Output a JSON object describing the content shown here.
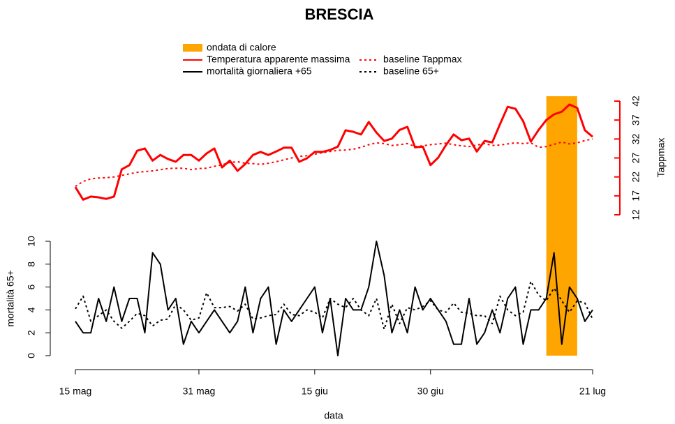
{
  "chart_data": {
    "type": "line",
    "title": "BRESCIA",
    "x_label": "data",
    "y_label": "mortalità 65+",
    "y2_label": "Tappmax",
    "x": [
      "15 mag",
      "16 mag",
      "17 mag",
      "18 mag",
      "19 mag",
      "20 mag",
      "21 mag",
      "22 mag",
      "23 mag",
      "24 mag",
      "25 mag",
      "26 mag",
      "27 mag",
      "28 mag",
      "29 mag",
      "30 mag",
      "31 mag",
      "1 giu",
      "2 giu",
      "3 giu",
      "4 giu",
      "5 giu",
      "6 giu",
      "7 giu",
      "8 giu",
      "9 giu",
      "10 giu",
      "11 giu",
      "12 giu",
      "13 giu",
      "14 giu",
      "15 giu",
      "16 giu",
      "17 giu",
      "18 giu",
      "19 giu",
      "20 giu",
      "21 giu",
      "22 giu",
      "23 giu",
      "24 giu",
      "25 giu",
      "26 giu",
      "27 giu",
      "28 giu",
      "29 giu",
      "30 giu",
      "1 lug",
      "2 lug",
      "3 lug",
      "4 lug",
      "5 lug",
      "6 lug",
      "7 lug",
      "8 lug",
      "9 lug",
      "10 lug",
      "11 lug",
      "12 lug",
      "13 lug",
      "14 lug",
      "15 lug",
      "16 lug",
      "17 lug",
      "18 lug",
      "19 lug",
      "20 lug",
      "21 lug"
    ],
    "xticks": [
      "15 mag",
      "31 mag",
      "15 giu",
      "30 giu",
      "21 lug"
    ],
    "ylim": [
      0,
      10
    ],
    "yticks": [
      0,
      2,
      4,
      6,
      8,
      10
    ],
    "y2lim": [
      12,
      42
    ],
    "y2ticks": [
      12,
      17,
      22,
      27,
      32,
      37,
      42
    ],
    "y2_color": "#ff0000",
    "highlight": {
      "name": "ondata di calore",
      "color": "#ffa500",
      "start": "15 lug",
      "end": "19 lug"
    },
    "series": [
      {
        "name": "Temperatura apparente massima",
        "color": "#ff0000",
        "dash": "solid",
        "axis": "y2",
        "values": [
          19.3,
          16.0,
          16.8,
          16.6,
          16.2,
          16.8,
          24.0,
          25.1,
          28.9,
          29.5,
          26.3,
          27.8,
          26.7,
          26.0,
          27.8,
          27.8,
          26.3,
          28.2,
          29.5,
          24.5,
          26.3,
          23.6,
          25.4,
          27.8,
          28.6,
          27.8,
          28.7,
          29.7,
          29.7,
          26.0,
          26.9,
          28.6,
          28.6,
          29.1,
          30.0,
          34.3,
          33.9,
          33.2,
          36.5,
          33.7,
          31.5,
          32.1,
          34.4,
          35.2,
          29.8,
          30.0,
          25.1,
          27.1,
          30.4,
          33.2,
          31.7,
          32.1,
          28.7,
          31.5,
          31.1,
          35.9,
          40.5,
          40.0,
          36.7,
          31.3,
          34.4,
          37.0,
          38.5,
          39.2,
          41.1,
          40.2,
          34.3,
          32.6
        ]
      },
      {
        "name": "baseline Tappmax",
        "color": "#ff0000",
        "dash": "dotted",
        "axis": "y2",
        "values": [
          19.5,
          20.8,
          21.5,
          21.7,
          21.8,
          22.0,
          22.4,
          22.8,
          23.2,
          23.4,
          23.6,
          23.9,
          24.2,
          24.3,
          24.3,
          23.9,
          24.2,
          24.3,
          24.8,
          25.2,
          25.8,
          26.0,
          25.6,
          25.5,
          25.3,
          25.6,
          26.0,
          26.5,
          27.0,
          27.4,
          27.6,
          28.0,
          28.4,
          28.7,
          29.0,
          29.1,
          29.3,
          29.8,
          30.5,
          31.0,
          30.8,
          30.3,
          30.5,
          30.8,
          30.0,
          30.2,
          30.5,
          30.7,
          30.9,
          30.5,
          30.2,
          30.0,
          30.4,
          30.8,
          30.3,
          30.4,
          30.7,
          31.0,
          30.8,
          31.0,
          29.8,
          30.0,
          30.6,
          31.2,
          30.7,
          31.0,
          31.6,
          32.0
        ]
      },
      {
        "name": "mortalità giornaliera +65",
        "color": "#000000",
        "dash": "solid",
        "axis": "y",
        "values": [
          3,
          2,
          2,
          5,
          3,
          6,
          3,
          5,
          5,
          2,
          9,
          8,
          4,
          5,
          1,
          3,
          2,
          3,
          4,
          3,
          2,
          3,
          6,
          2,
          5,
          6,
          1,
          4,
          3,
          4,
          5,
          6,
          2,
          5,
          0,
          5,
          4,
          4,
          6,
          10,
          7,
          2,
          4,
          2,
          6,
          4,
          5,
          4,
          3,
          1,
          1,
          5,
          1,
          2,
          4,
          2,
          5,
          6,
          1,
          4,
          4,
          5,
          9,
          1,
          6,
          5,
          3,
          4
        ]
      },
      {
        "name": "baseline 65+",
        "color": "#000000",
        "dash": "dotted",
        "axis": "y",
        "values": [
          4.1,
          5.2,
          3.0,
          3.5,
          4.0,
          3.0,
          2.4,
          3.0,
          3.7,
          3.5,
          2.6,
          3.1,
          3.2,
          4.5,
          4.0,
          3.1,
          3.3,
          5.5,
          4.2,
          4.2,
          4.3,
          3.9,
          4.5,
          3.2,
          3.3,
          3.5,
          3.6,
          4.5,
          3.6,
          3.5,
          4.0,
          3.8,
          3.3,
          5.0,
          4.5,
          4.2,
          5.0,
          4.0,
          3.5,
          5.0,
          2.3,
          4.5,
          2.8,
          4.2,
          4.0,
          4.3,
          4.8,
          4.0,
          3.8,
          4.6,
          3.8,
          3.7,
          3.5,
          3.5,
          2.8,
          5.2,
          4.0,
          3.5,
          3.8,
          6.5,
          5.3,
          4.8,
          5.9,
          4.8,
          3.8,
          4.8,
          4.6,
          3.2
        ]
      }
    ]
  }
}
